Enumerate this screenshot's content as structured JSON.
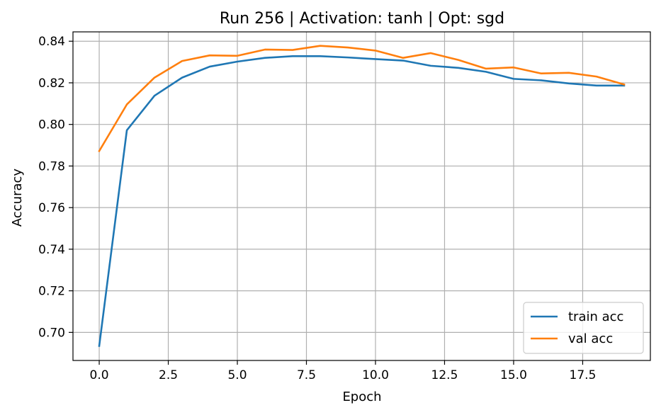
{
  "chart_data": {
    "type": "line",
    "title": "Run 256 | Activation: tanh | Opt: sgd",
    "xlabel": "Epoch",
    "ylabel": "Accuracy",
    "xlim": [
      -0.95,
      19.95
    ],
    "ylim": [
      0.6865,
      0.8445
    ],
    "x_ticks": [
      0.0,
      2.5,
      5.0,
      7.5,
      10.0,
      12.5,
      15.0,
      17.5
    ],
    "x_tick_labels": [
      "0.0",
      "2.5",
      "5.0",
      "7.5",
      "10.0",
      "12.5",
      "15.0",
      "17.5"
    ],
    "y_ticks": [
      0.7,
      0.72,
      0.74,
      0.76,
      0.78,
      0.8,
      0.82,
      0.84
    ],
    "y_tick_labels": [
      "0.70",
      "0.72",
      "0.74",
      "0.76",
      "0.78",
      "0.80",
      "0.82",
      "0.84"
    ],
    "grid": true,
    "legend_position": "bottom-right",
    "x": [
      0,
      1,
      2,
      3,
      4,
      5,
      6,
      7,
      8,
      9,
      10,
      11,
      12,
      13,
      14,
      15,
      16,
      17,
      18,
      19
    ],
    "series": [
      {
        "name": "train acc",
        "color": "#1f77b4",
        "values": [
          0.6935,
          0.7972,
          0.8138,
          0.8225,
          0.8278,
          0.8302,
          0.832,
          0.8328,
          0.8328,
          0.8322,
          0.8314,
          0.8307,
          0.8282,
          0.8272,
          0.8253,
          0.8219,
          0.8212,
          0.8197,
          0.8187,
          0.8187
        ]
      },
      {
        "name": "val acc",
        "color": "#ff7f0e",
        "values": [
          0.7872,
          0.8096,
          0.8225,
          0.8305,
          0.8332,
          0.833,
          0.836,
          0.8358,
          0.8378,
          0.837,
          0.8355,
          0.832,
          0.8343,
          0.831,
          0.8268,
          0.8274,
          0.8245,
          0.8248,
          0.823,
          0.8192
        ]
      }
    ]
  }
}
